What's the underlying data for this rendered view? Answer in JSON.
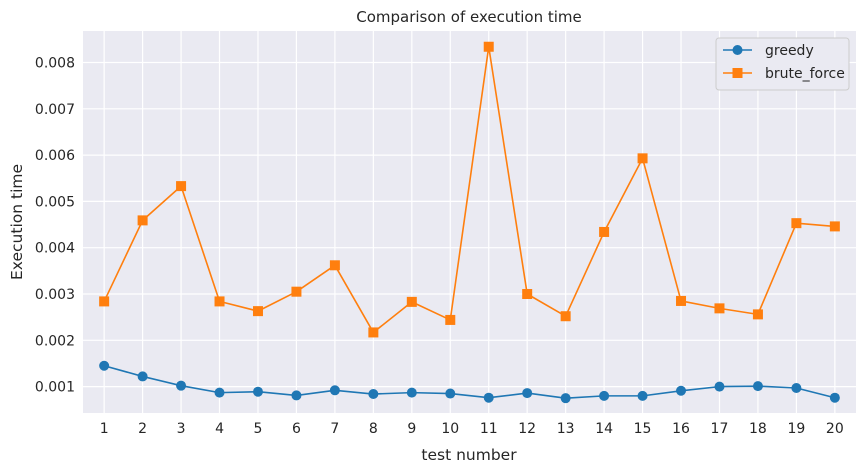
{
  "chart_data": {
    "type": "line",
    "title": "Comparison of execution time",
    "xlabel": "test number",
    "ylabel": "Execution time",
    "x": [
      1,
      2,
      3,
      4,
      5,
      6,
      7,
      8,
      9,
      10,
      11,
      12,
      13,
      14,
      15,
      16,
      17,
      18,
      19,
      20
    ],
    "x_ticks": [
      "1",
      "2",
      "3",
      "4",
      "5",
      "6",
      "7",
      "8",
      "9",
      "10",
      "11",
      "12",
      "13",
      "14",
      "15",
      "16",
      "17",
      "18",
      "19",
      "20"
    ],
    "y_ticks": [
      "0.001",
      "0.002",
      "0.003",
      "0.004",
      "0.005",
      "0.006",
      "0.007",
      "0.008"
    ],
    "y_tick_values": [
      0.001,
      0.002,
      0.003,
      0.004,
      0.005,
      0.006,
      0.007,
      0.008
    ],
    "xlim": [
      0.45,
      20.55
    ],
    "ylim": [
      0.00043,
      0.00868
    ],
    "grid": true,
    "legend_position": "top-right",
    "series": [
      {
        "name": "greedy",
        "color": "#1f77b4",
        "marker": "circle",
        "values": [
          0.00145,
          0.00122,
          0.00102,
          0.00087,
          0.00089,
          0.00081,
          0.00092,
          0.00084,
          0.00087,
          0.00085,
          0.00076,
          0.00086,
          0.00075,
          0.0008,
          0.0008,
          0.00091,
          0.001,
          0.00101,
          0.00097,
          0.00076
        ]
      },
      {
        "name": "brute_force",
        "color": "#ff7f0e",
        "marker": "square",
        "values": [
          0.00284,
          0.00459,
          0.00533,
          0.00284,
          0.00263,
          0.00305,
          0.00362,
          0.00217,
          0.00283,
          0.00244,
          0.00834,
          0.003,
          0.00252,
          0.00434,
          0.00593,
          0.00285,
          0.00269,
          0.00256,
          0.00453,
          0.00446
        ]
      }
    ]
  }
}
